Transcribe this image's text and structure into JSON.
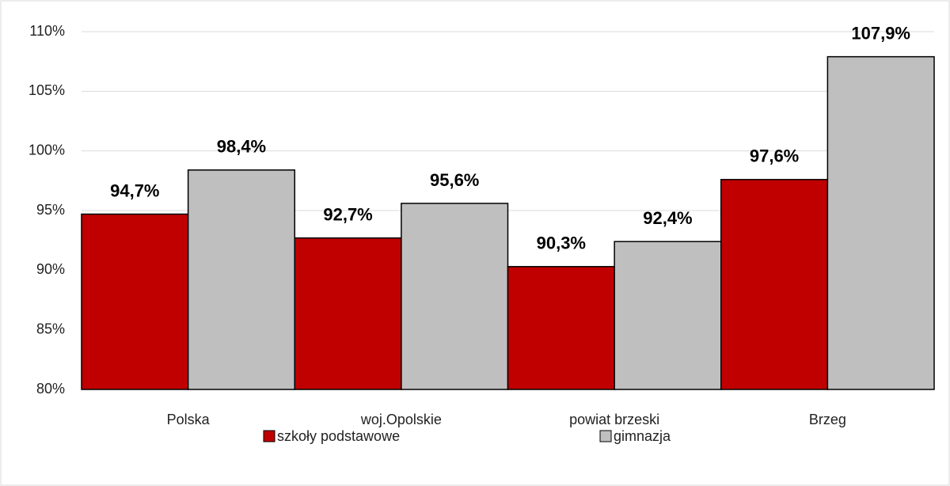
{
  "chart_data": {
    "type": "bar",
    "categories": [
      "Polska",
      "woj.Opolskie",
      "powiat brzeski",
      "Brzeg"
    ],
    "series": [
      {
        "name": "szkoły podstawowe",
        "color": "#c00000",
        "values": [
          94.7,
          92.7,
          90.3,
          97.6
        ],
        "value_labels": [
          "94,7%",
          "92,7%",
          "90,3%",
          "97,6%"
        ]
      },
      {
        "name": "gimnazja",
        "color": "#bfbfbf",
        "values": [
          98.4,
          95.6,
          92.4,
          107.9
        ],
        "value_labels": [
          "98,4%",
          "95,6%",
          "92,4%",
          "107,9%"
        ]
      }
    ],
    "ylim": [
      80,
      110
    ],
    "yticks": [
      {
        "value": 80,
        "label": "80%"
      },
      {
        "value": 85,
        "label": "85%"
      },
      {
        "value": 90,
        "label": "90%"
      },
      {
        "value": 95,
        "label": "95%"
      },
      {
        "value": 100,
        "label": "100%"
      },
      {
        "value": 105,
        "label": "105%"
      },
      {
        "value": 110,
        "label": "110%"
      }
    ],
    "grid": true,
    "legend": "bottom"
  }
}
